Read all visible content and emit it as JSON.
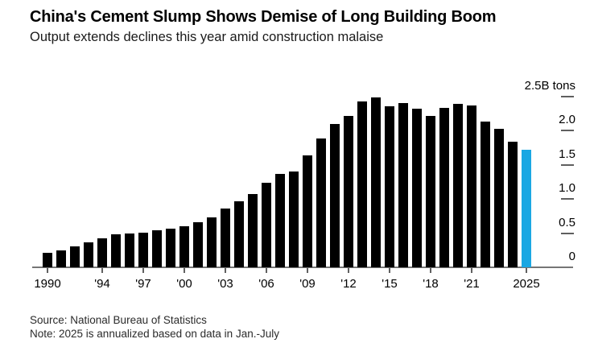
{
  "header": {
    "title": "China's Cement Slump Shows Demise of Long Building Boom",
    "subtitle": "Output extends declines this year amid construction malaise"
  },
  "footer": {
    "source": "Source: National Bureau of Statistics",
    "note": "Note: 2025 is annualized based on data in Jan.-July"
  },
  "chart_data": {
    "type": "bar",
    "title": "China's Cement Slump Shows Demise of Long Building Boom",
    "subtitle": "Output extends declines this year amid construction malaise",
    "unit": "B tons",
    "categories": [
      1990,
      1991,
      1992,
      1993,
      1994,
      1995,
      1996,
      1997,
      1998,
      1999,
      2000,
      2001,
      2002,
      2003,
      2004,
      2005,
      2006,
      2007,
      2008,
      2009,
      2010,
      2011,
      2012,
      2013,
      2014,
      2015,
      2016,
      2017,
      2018,
      2019,
      2020,
      2021,
      2022,
      2023,
      2024,
      2025
    ],
    "values": [
      0.21,
      0.25,
      0.31,
      0.37,
      0.42,
      0.48,
      0.49,
      0.51,
      0.54,
      0.57,
      0.6,
      0.66,
      0.73,
      0.86,
      0.97,
      1.07,
      1.24,
      1.36,
      1.4,
      1.64,
      1.88,
      2.09,
      2.21,
      2.42,
      2.48,
      2.35,
      2.4,
      2.32,
      2.21,
      2.33,
      2.39,
      2.36,
      2.13,
      2.02,
      1.83,
      1.72
    ],
    "ylim": [
      0,
      2.5
    ],
    "y_ticks": [
      {
        "label": "2.5B tons",
        "value": 2.5
      },
      {
        "label": "2.0",
        "value": 2.0
      },
      {
        "label": "1.5",
        "value": 1.5
      },
      {
        "label": "1.0",
        "value": 1.0
      },
      {
        "label": "0.5",
        "value": 0.5
      },
      {
        "label": "0",
        "value": 0
      }
    ],
    "x_ticks": [
      {
        "label": "1990",
        "year": 1990
      },
      {
        "label": "'94",
        "year": 1994
      },
      {
        "label": "'97",
        "year": 1997
      },
      {
        "label": "'00",
        "year": 2000
      },
      {
        "label": "'03",
        "year": 2003
      },
      {
        "label": "'06",
        "year": 2006
      },
      {
        "label": "'09",
        "year": 2009
      },
      {
        "label": "'12",
        "year": 2012
      },
      {
        "label": "'15",
        "year": 2015
      },
      {
        "label": "'18",
        "year": 2018
      },
      {
        "label": "'21",
        "year": 2021
      },
      {
        "label": "2025",
        "year": 2025
      }
    ],
    "highlight_year": 2025,
    "highlight_color": "#1AA7E3",
    "bar_color": "#000000",
    "axis_color": "#767676",
    "grid": false,
    "legend": false,
    "y_axis_position": "right"
  }
}
